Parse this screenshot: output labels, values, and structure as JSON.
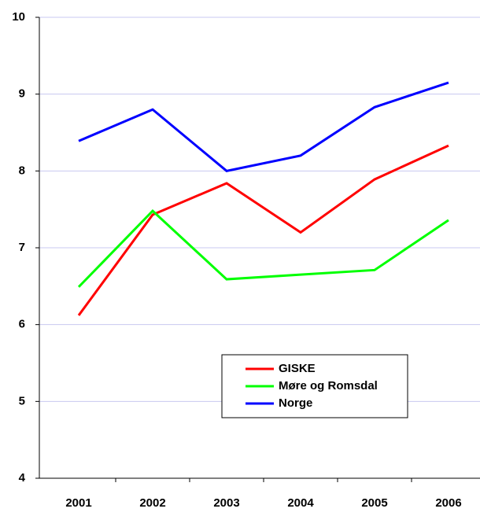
{
  "chart_data": {
    "type": "line",
    "categories": [
      "2001",
      "2002",
      "2003",
      "2004",
      "2005",
      "2006"
    ],
    "series": [
      {
        "name": "GISKE",
        "color": "#ff0000",
        "values": [
          6.12,
          7.43,
          7.84,
          7.2,
          7.89,
          8.33
        ]
      },
      {
        "name": "Møre og Romsdal",
        "color": "#00ff00",
        "values": [
          6.49,
          7.48,
          6.59,
          6.65,
          6.71,
          7.36
        ]
      },
      {
        "name": "Norge",
        "color": "#0000ff",
        "values": [
          8.39,
          8.8,
          8.0,
          8.2,
          8.83,
          9.15
        ]
      }
    ],
    "ylim": [
      4,
      10
    ],
    "yticks": [
      4,
      5,
      6,
      7,
      8,
      9,
      10
    ],
    "grid": true,
    "legend": "lower-right"
  }
}
